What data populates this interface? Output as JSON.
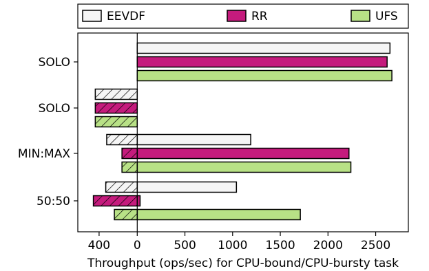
{
  "chart_data": {
    "type": "bar",
    "orientation": "horizontal",
    "categories": [
      "SOLO",
      "SOLO",
      "MIN:MAX",
      "50:50"
    ],
    "xlabel": "Throughput (ops/sec) for CPU-bound/CPU-bursty task",
    "ylabel": "",
    "xlim": [
      -620,
      2800
    ],
    "xticks": [
      -400,
      0,
      500,
      1000,
      1500,
      2000,
      2500
    ],
    "xtick_labels": [
      "400",
      "0",
      "500",
      "1000",
      "1500",
      "2000",
      "2500"
    ],
    "grid": false,
    "legend_position": "top",
    "note": "",
    "series": [
      {
        "name": "EEVDF",
        "color": "#f5f5f5",
        "cpu_bound": [
          2650,
          0,
          1190,
          1040
        ],
        "cpu_bursty": [
          0,
          440,
          320,
          330
        ]
      },
      {
        "name": "RR",
        "color": "#c51b7d",
        "cpu_bound": [
          2620,
          0,
          2220,
          30
        ],
        "cpu_bursty": [
          0,
          440,
          160,
          460
        ]
      },
      {
        "name": "UFS",
        "color": "#b8e186",
        "cpu_bound": [
          2670,
          0,
          2240,
          1710
        ],
        "cpu_bursty": [
          0,
          440,
          160,
          240
        ]
      }
    ]
  }
}
